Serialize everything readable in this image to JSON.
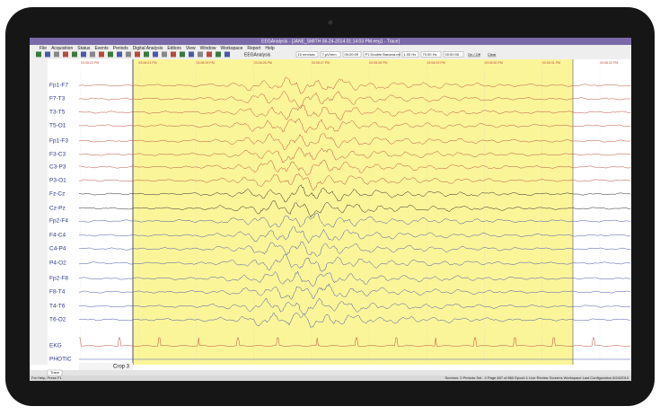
{
  "window": {
    "title": "EEGAnalysis - [JANE_SMITH 06-24-2014 01:14:03 PM.eeg1 - Trace]"
  },
  "menu": [
    "File",
    "Acquisition",
    "Status",
    "Events",
    "Periods",
    "Digital Analysis",
    "Editors",
    "View",
    "Window",
    "Workspace",
    "Report",
    "Help"
  ],
  "toolbar": {
    "button": "EEGAnalysis",
    "fields": [
      "10 mm/sec",
      "7 µV/mm",
      "00:20:00",
      "P1 Double Banana.mt",
      "1.00 Hz",
      "70.00 Hz",
      "00:00:00"
    ],
    "buttons": [
      "On / Off",
      "Clear"
    ]
  },
  "times": [
    "03:08:23 PM",
    "03:08:24 PM",
    "03:08:25 PM",
    "03:08:26 PM",
    "03:08:27 PM",
    "03:08:28 PM",
    "03:08:29 PM",
    "03:08:30 PM",
    "03:08:31 PM",
    "03:08:32 PM"
  ],
  "channels": [
    {
      "label": "Fp1-F7",
      "color": "#b84a3c"
    },
    {
      "label": "F7-T3",
      "color": "#b84a3c"
    },
    {
      "label": "T3-T5",
      "color": "#b84a3c"
    },
    {
      "label": "T5-O1",
      "color": "#b84a3c"
    },
    {
      "label": "Fp1-F3",
      "color": "#b84a3c"
    },
    {
      "label": "F3-C3",
      "color": "#b84a3c"
    },
    {
      "label": "C3-P3",
      "color": "#b84a3c"
    },
    {
      "label": "P3-O1",
      "color": "#b84a3c"
    },
    {
      "label": "Fz-Cz",
      "color": "#222222"
    },
    {
      "label": "Cz-Pz",
      "color": "#222222"
    },
    {
      "label": "Fp2-F4",
      "color": "#4150a8"
    },
    {
      "label": "F4-C4",
      "color": "#4150a8"
    },
    {
      "label": "C4-P4",
      "color": "#4150a8"
    },
    {
      "label": "P4-O2",
      "color": "#4150a8"
    },
    {
      "label": "Fp2-F8",
      "color": "#4150a8"
    },
    {
      "label": "F8-T4",
      "color": "#4150a8"
    },
    {
      "label": "T4-T6",
      "color": "#4150a8"
    },
    {
      "label": "T6-O2",
      "color": "#4150a8"
    },
    {
      "label": "EKG",
      "color": "#b84a3c"
    },
    {
      "label": "PHOTIC",
      "color": "#4150a8"
    }
  ],
  "crop": "Crop 3",
  "tab": "Trace",
  "status": {
    "left": "For Help, Press F1",
    "right": "Screens: 0   Periods Sel.: 4   Page 487 of 860   Epoch 1   Live Review Screens   Workspace Last Configuration   6/24/2014"
  }
}
